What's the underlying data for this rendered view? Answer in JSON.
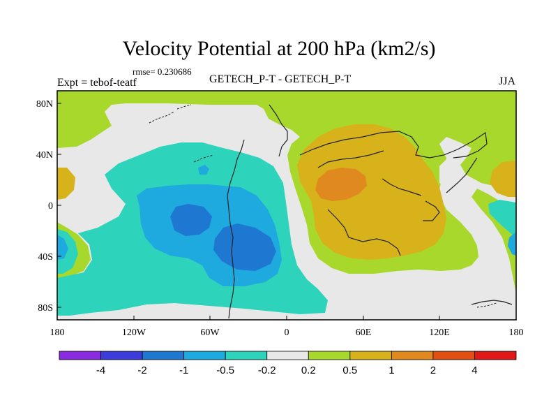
{
  "header": {
    "title": "Velocity Potential at 200 hPa (km2/s)",
    "rmse": "rmse= 0.230686",
    "experiment": "Expt = tebof-teatf",
    "comparison": "GETECH_P-T - GETECH_P-T",
    "season": "JJA"
  },
  "map": {
    "background_color": "#e8e8e8",
    "lon_range": [
      -180,
      180
    ],
    "lat_range": [
      -90,
      90
    ],
    "x_ticks": [
      "180",
      "120W",
      "60W",
      "0",
      "60E",
      "120E",
      "180"
    ],
    "y_ticks": [
      "80N",
      "40N",
      "0",
      "40S",
      "80S"
    ]
  },
  "colorbar": {
    "colors": [
      "#8a2be2",
      "#3c3cdc",
      "#1e78d2",
      "#1eaade",
      "#2ed3bc",
      "#e8e8e8",
      "#a9d82c",
      "#d8b21a",
      "#e0891e",
      "#e14f12",
      "#e01818"
    ],
    "labels": [
      "-4",
      "-2",
      "-1",
      "-0.5",
      "-0.2",
      "0.2",
      "0.5",
      "1",
      "2",
      "4"
    ]
  }
}
